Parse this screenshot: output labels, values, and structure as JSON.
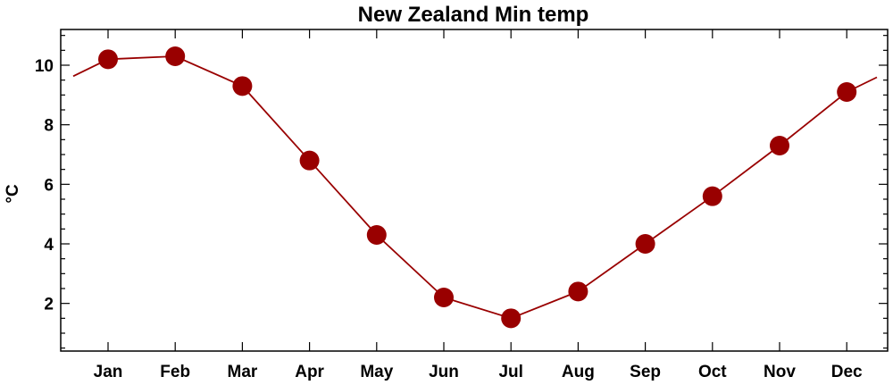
{
  "chart_data": {
    "type": "line",
    "title": "New Zealand Min temp",
    "xlabel": "",
    "ylabel": "°C",
    "categories": [
      "Jan",
      "Feb",
      "Mar",
      "Apr",
      "May",
      "Jun",
      "Jul",
      "Aug",
      "Sep",
      "Oct",
      "Nov",
      "Dec"
    ],
    "series": [
      {
        "values": [
          10.2,
          10.3,
          9.3,
          6.8,
          4.3,
          2.2,
          1.5,
          2.4,
          4.0,
          5.6,
          7.3,
          9.1
        ],
        "color": "#990000"
      }
    ],
    "ylim": [
      0.4,
      11.2
    ],
    "yticks": [
      2,
      4,
      6,
      8,
      10
    ],
    "grid": false,
    "legend": "none",
    "line_wraps_around": true
  }
}
